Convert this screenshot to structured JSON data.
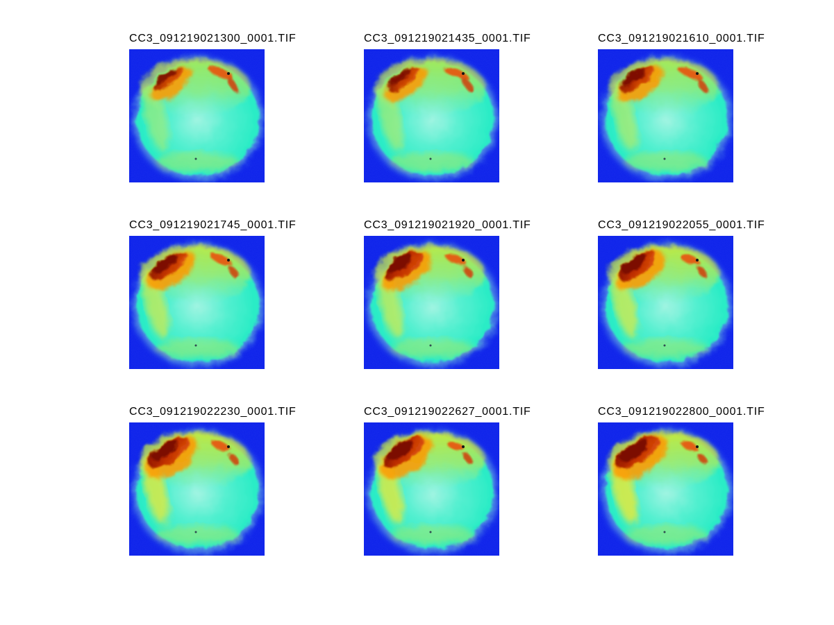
{
  "figure": {
    "background_color": "#ffffff",
    "title_text_color": "#000000",
    "grid": {
      "rows": 3,
      "cols": 3
    }
  },
  "colors": {
    "sky_background_blue": "#0c20ea",
    "halo_pale_cyan": "#8ceede",
    "disk_center_cyan": "#a0f4e2",
    "disk_mid_cyan": "#55f0d0",
    "disk_edge_cyan": "#2cecc6",
    "upper_band_yellow_green": "#d4e830",
    "upper_band_fade": "#9cf09c",
    "left_rim_yellow": "#e2ea3c",
    "bottom_band_green_yellow": "#b9e954",
    "fringe_orange": "#ff9800",
    "streak_red_orange": "#e85510",
    "streak_deep_orange": "#d04008",
    "blob_red": "#c03000",
    "blob_red_edge": "#e86010",
    "blob_dark_red": "#7c0c00",
    "speck_black": "#141414",
    "speck_dark": "#223344"
  },
  "panels": [
    {
      "title": "CC3_091219021300_0001.TIF",
      "blob_w": 26,
      "blob_h": 8,
      "blob_opacity": 0.85,
      "band_opacity": 0.7,
      "rim_opacity": 0.4,
      "streak_scale": 1.0
    },
    {
      "title": "CC3_091219021435_0001.TIF",
      "blob_w": 27,
      "blob_h": 9,
      "blob_opacity": 0.88,
      "band_opacity": 0.72,
      "rim_opacity": 0.45,
      "streak_scale": 1.0
    },
    {
      "title": "CC3_091219021610_0001.TIF",
      "blob_w": 29,
      "blob_h": 10,
      "blob_opacity": 0.92,
      "band_opacity": 0.75,
      "rim_opacity": 0.5,
      "streak_scale": 0.95
    },
    {
      "title": "CC3_091219021745_0001.TIF",
      "blob_w": 31,
      "blob_h": 12,
      "blob_opacity": 0.96,
      "band_opacity": 0.85,
      "rim_opacity": 0.65,
      "streak_scale": 0.82
    },
    {
      "title": "CC3_091219021920_0001.TIF",
      "blob_w": 32,
      "blob_h": 13,
      "blob_opacity": 1.0,
      "band_opacity": 0.85,
      "rim_opacity": 0.65,
      "streak_scale": 0.8
    },
    {
      "title": "CC3_091219022055_0001.TIF",
      "blob_w": 32,
      "blob_h": 13,
      "blob_opacity": 1.0,
      "band_opacity": 0.88,
      "rim_opacity": 0.7,
      "streak_scale": 0.75
    },
    {
      "title": "CC3_091219022230_0001.TIF",
      "blob_w": 34,
      "blob_h": 14,
      "blob_opacity": 1.0,
      "band_opacity": 0.9,
      "rim_opacity": 0.8,
      "streak_scale": 0.7
    },
    {
      "title": "CC3_091219022627_0001.TIF",
      "blob_w": 34,
      "blob_h": 14,
      "blob_opacity": 1.0,
      "band_opacity": 0.9,
      "rim_opacity": 0.8,
      "streak_scale": 0.65
    },
    {
      "title": "CC3_091219022800_0001.TIF",
      "blob_w": 36,
      "blob_h": 15,
      "blob_opacity": 1.0,
      "band_opacity": 0.92,
      "rim_opacity": 0.85,
      "streak_scale": 0.6
    }
  ]
}
